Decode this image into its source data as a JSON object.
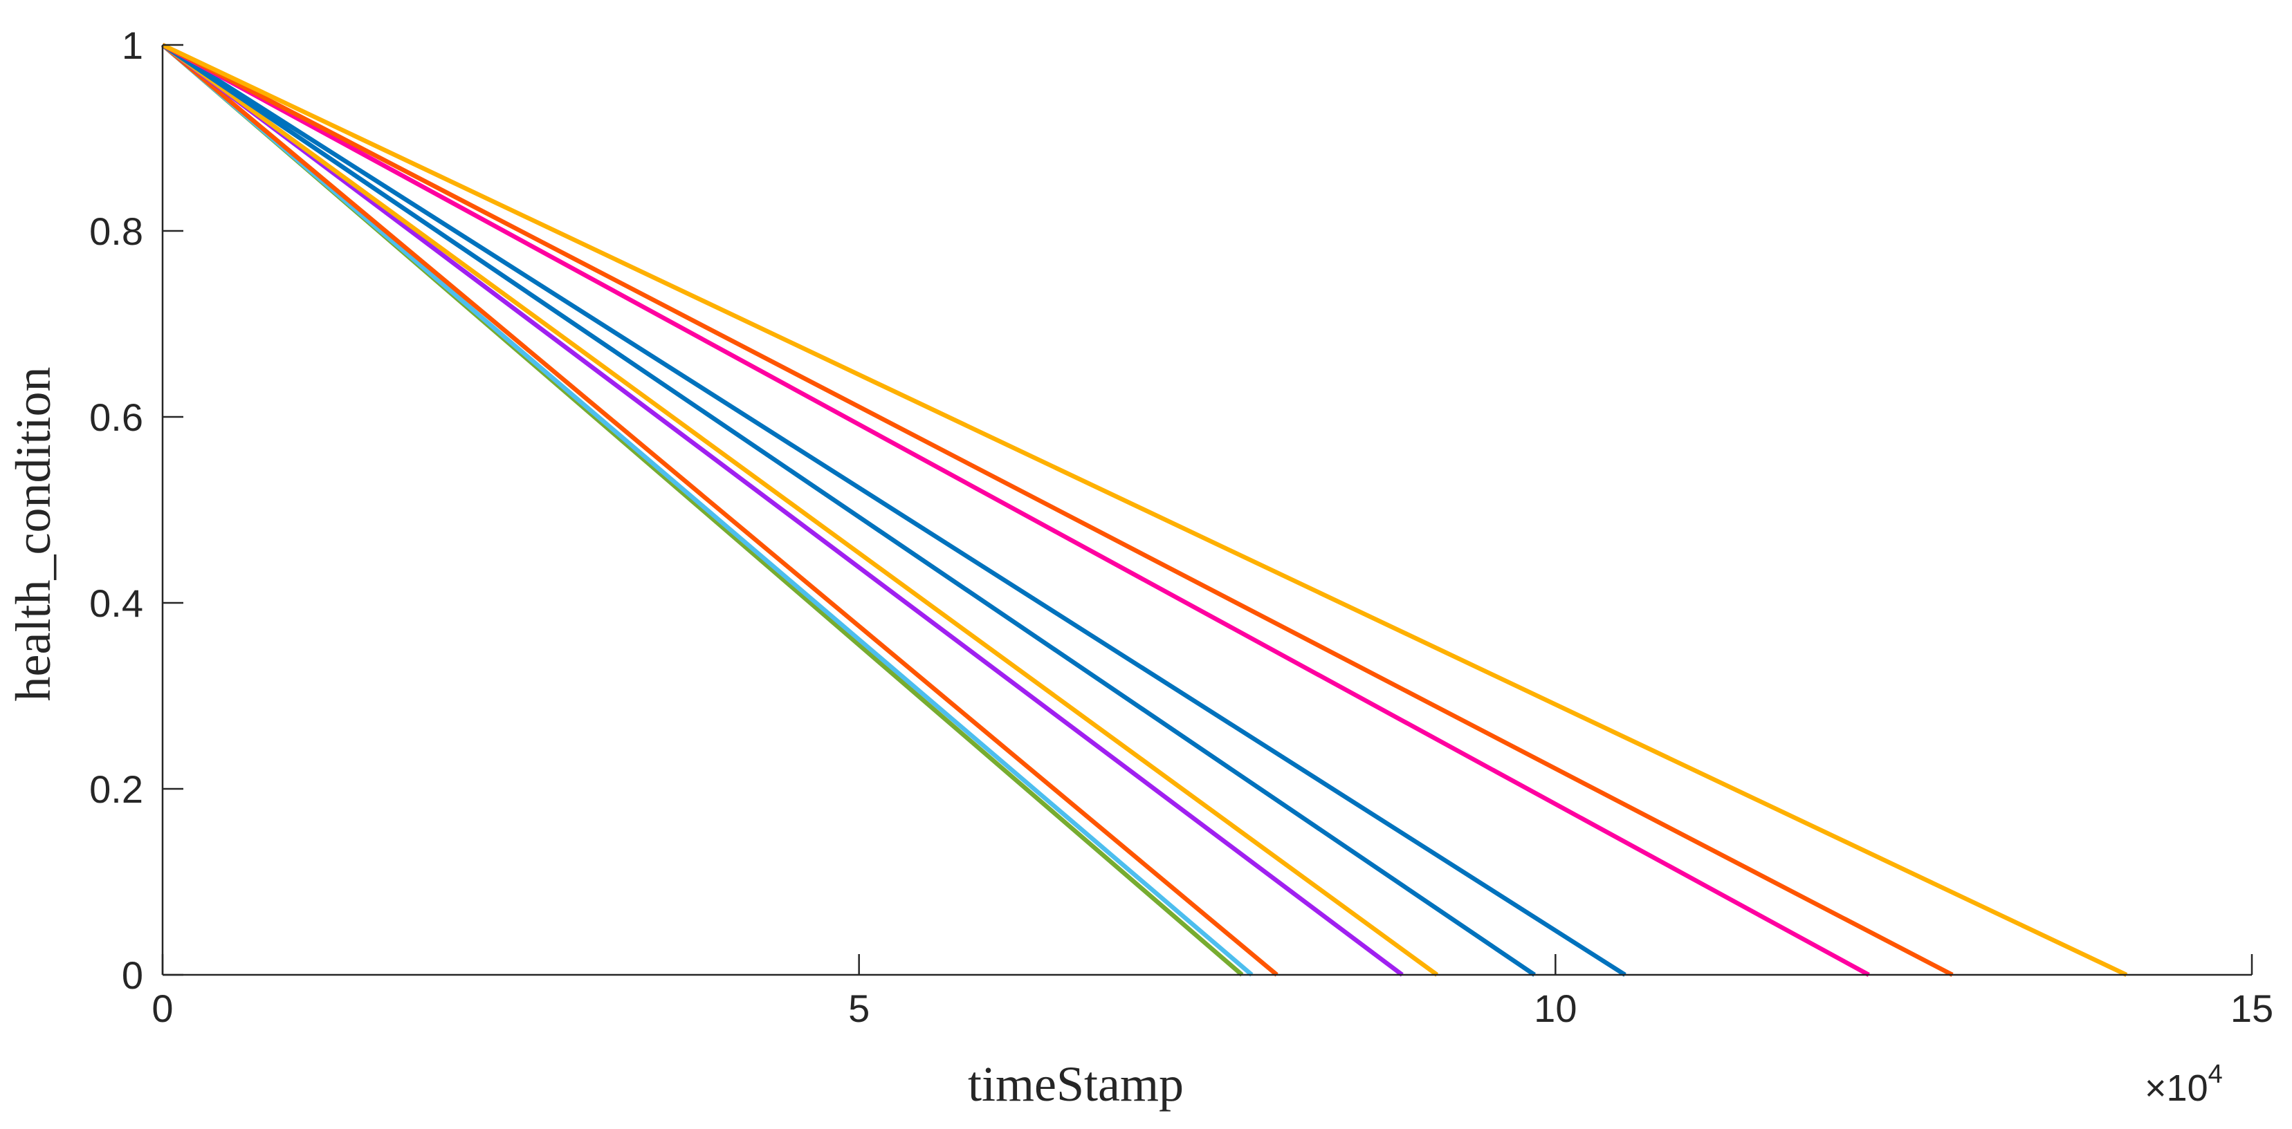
{
  "chart_data": {
    "type": "line",
    "title": "",
    "xlabel": "timeStamp",
    "ylabel": "health_condition",
    "x_exponent": {
      "base": "×10",
      "power": "4"
    },
    "xlim": [
      0,
      15
    ],
    "ylim": [
      0,
      1
    ],
    "xticks": [
      "0",
      "5",
      "10",
      "15"
    ],
    "yticks": [
      "0",
      "0.2",
      "0.4",
      "0.6",
      "0.8",
      "1"
    ],
    "xtick_values": [
      0,
      5,
      10,
      15
    ],
    "ytick_values": [
      0,
      0.2,
      0.4,
      0.6,
      0.8,
      1
    ],
    "grid": false,
    "legend": "none",
    "series": [
      {
        "color": "#77AC30",
        "x": [
          0,
          7.75
        ],
        "y": [
          1,
          0
        ]
      },
      {
        "color": "#4DBEEE",
        "x": [
          0,
          7.82
        ],
        "y": [
          1,
          0
        ]
      },
      {
        "color": "#FF5500",
        "x": [
          0,
          8.0
        ],
        "y": [
          1,
          0
        ]
      },
      {
        "color": "#A020F0",
        "x": [
          0,
          8.9
        ],
        "y": [
          1,
          0
        ]
      },
      {
        "color": "#FFB000",
        "x": [
          0,
          9.15
        ],
        "y": [
          1,
          0
        ]
      },
      {
        "color": "#0072BD",
        "x": [
          0,
          9.85
        ],
        "y": [
          1,
          0
        ]
      },
      {
        "color": "#0072BD",
        "x": [
          0,
          10.5
        ],
        "y": [
          1,
          0
        ]
      },
      {
        "color": "#FF00A0",
        "x": [
          0,
          12.25
        ],
        "y": [
          1,
          0
        ]
      },
      {
        "color": "#FF5500",
        "x": [
          0,
          12.85
        ],
        "y": [
          1,
          0
        ]
      },
      {
        "color": "#FFB000",
        "x": [
          0,
          14.1
        ],
        "y": [
          1,
          0
        ]
      }
    ]
  }
}
